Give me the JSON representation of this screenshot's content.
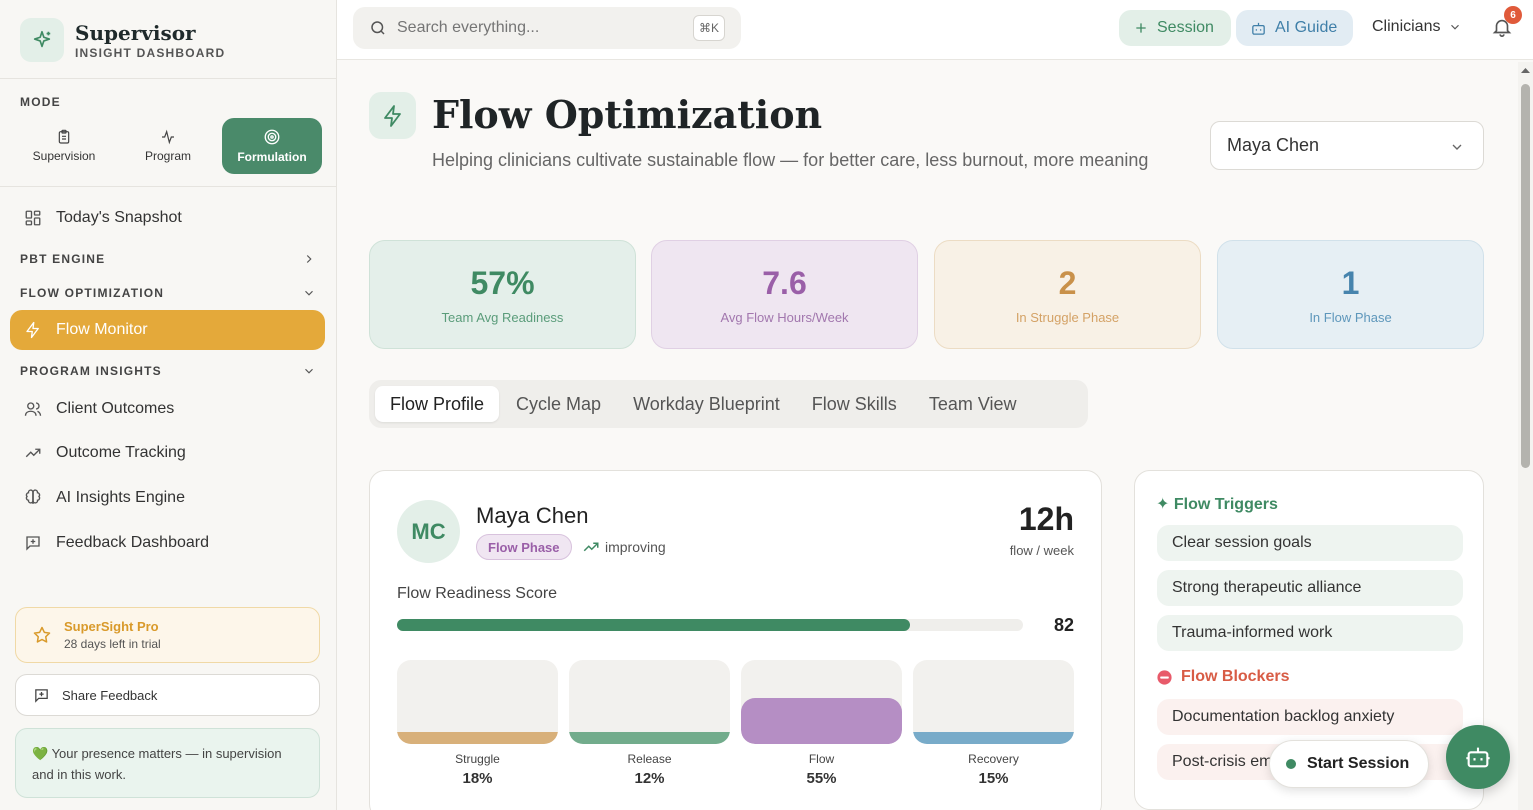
{
  "brand": {
    "title": "Supervisor",
    "subtitle": "INSIGHT DASHBOARD"
  },
  "sidebar": {
    "mode_label": "MODE",
    "modes": [
      {
        "label": "Supervision",
        "icon": "clipboard-icon"
      },
      {
        "label": "Program",
        "icon": "activity-icon"
      },
      {
        "label": "Formulation",
        "icon": "target-icon",
        "active": true
      }
    ],
    "snapshot": "Today's Snapshot",
    "groups": {
      "pbt": "PBT ENGINE",
      "flow": "FLOW OPTIMIZATION",
      "program": "PROGRAM INSIGHTS"
    },
    "flow_monitor": "Flow Monitor",
    "program_items": [
      "Client Outcomes",
      "Outcome Tracking",
      "AI Insights Engine",
      "Feedback Dashboard"
    ],
    "promo": {
      "title": "SuperSight Pro",
      "sub": "28 days left in trial"
    },
    "share": "Share Feedback",
    "presence": "💚 Your presence matters — in supervision and in this work."
  },
  "topbar": {
    "search_placeholder": "Search everything...",
    "shortcut": "⌘K",
    "session_btn": "Session",
    "guide_btn": "AI Guide",
    "clinicians": "Clinicians",
    "notif_count": "6"
  },
  "page": {
    "title": "Flow Optimization",
    "subtitle": "Helping clinicians cultivate sustainable flow — for better care, less burnout, more meaning",
    "selected_clinician": "Maya Chen"
  },
  "stats": [
    {
      "value": "57%",
      "label": "Team Avg Readiness",
      "bg": "#e4efea",
      "border": "#cfe2d8",
      "color": "#3f8a63",
      "lblcolor": "#5a9c7a"
    },
    {
      "value": "7.6",
      "label": "Avg Flow Hours/Week",
      "bg": "#efe6f1",
      "border": "#e0d0e4",
      "color": "#9a5fa8",
      "lblcolor": "#a277ae"
    },
    {
      "value": "2",
      "label": "In Struggle Phase",
      "bg": "#f8f1e6",
      "border": "#ecdcc4",
      "color": "#c9914a",
      "lblcolor": "#d4a266"
    },
    {
      "value": "1",
      "label": "In Flow Phase",
      "bg": "#e6eff4",
      "border": "#d1e1ea",
      "color": "#4784ad",
      "lblcolor": "#5e97bb"
    }
  ],
  "tabs": [
    "Flow Profile",
    "Cycle Map",
    "Workday Blueprint",
    "Flow Skills",
    "Team View"
  ],
  "profile": {
    "initials": "MC",
    "name": "Maya Chen",
    "phase_badge": "Flow Phase",
    "trend": "improving",
    "hours": "12h",
    "hours_label": "flow / week",
    "score_label": "Flow Readiness Score",
    "score": 82,
    "score_text": "82",
    "phases": [
      {
        "name": "Struggle",
        "pct": "18%",
        "value": 18,
        "color": "#d8b07a"
      },
      {
        "name": "Release",
        "pct": "12%",
        "value": 12,
        "color": "#72ac8c"
      },
      {
        "name": "Flow",
        "pct": "55%",
        "value": 55,
        "color": "#b58ec4"
      },
      {
        "name": "Recovery",
        "pct": "15%",
        "value": 15,
        "color": "#78abc9"
      }
    ]
  },
  "triggers": {
    "title": "✦ Flow Triggers",
    "items": [
      "Clear session goals",
      "Strong therapeutic alliance",
      "Trauma-informed work"
    ],
    "blockers_title": "Flow Blockers",
    "blockers": [
      "Documentation backlog anxiety",
      "Post-crisis emotional fatigue"
    ]
  },
  "start_session": "Start Session"
}
